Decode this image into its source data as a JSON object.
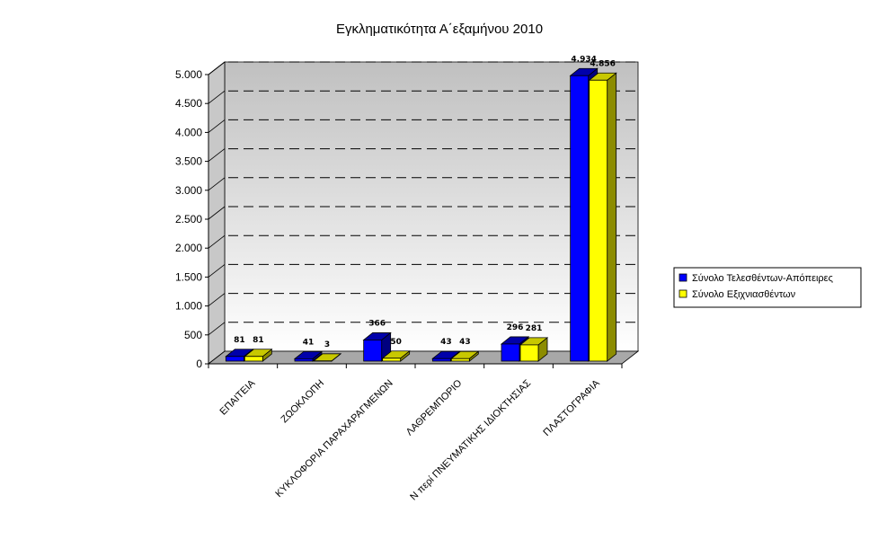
{
  "chart_data": {
    "type": "bar",
    "title": "Εγκληματικότητα Α΄εξαμήνου 2010",
    "categories": [
      "ΕΠΑΙΤΕΙΑ",
      "ΖΩΟΚΛΟΠΗ",
      "ΚΥΚΛΟΦΟΡΙΑ ΠΑΡΑΧΑΡΑΓΜΕΝΩΝ",
      "ΛΑΘΡΕΜΠΟΡΙΟ",
      "Ν περί ΠΝΕΥΜΑΤΙΚΗΣ ΙΔΙΟΚΤΗΣΙΑΣ",
      "ΠΛΑΣΤΟΓΡΑΦΙΑ"
    ],
    "series": [
      {
        "name": "Σύνολο Τελεσθέντων-Απόπειρες",
        "values": [
          81,
          41,
          366,
          43,
          296,
          4934
        ],
        "labels": [
          "81",
          "41",
          "366",
          "43",
          "296",
          "4.934"
        ],
        "color": "#0000FF",
        "side_color": "#000080",
        "top_color": "#0000AA"
      },
      {
        "name": "Σύνολο Εξιχνιασθέντων",
        "values": [
          81,
          3,
          50,
          43,
          281,
          4856
        ],
        "labels": [
          "81",
          "3",
          "50",
          "43",
          "281",
          "4.856"
        ],
        "color": "#FFFF00",
        "side_color": "#8C8C00",
        "top_color": "#C8C800"
      }
    ],
    "ylim": [
      0,
      5000
    ],
    "yticks": [
      0,
      500,
      1000,
      1500,
      2000,
      2500,
      3000,
      3500,
      4000,
      4500,
      5000
    ],
    "ytick_labels": [
      "0",
      "500",
      "1.000",
      "1.500",
      "2.000",
      "2.500",
      "3.000",
      "3.500",
      "4.000",
      "4.500",
      "5.000"
    ],
    "grid": true,
    "legend_position": "right",
    "view": "3d"
  }
}
